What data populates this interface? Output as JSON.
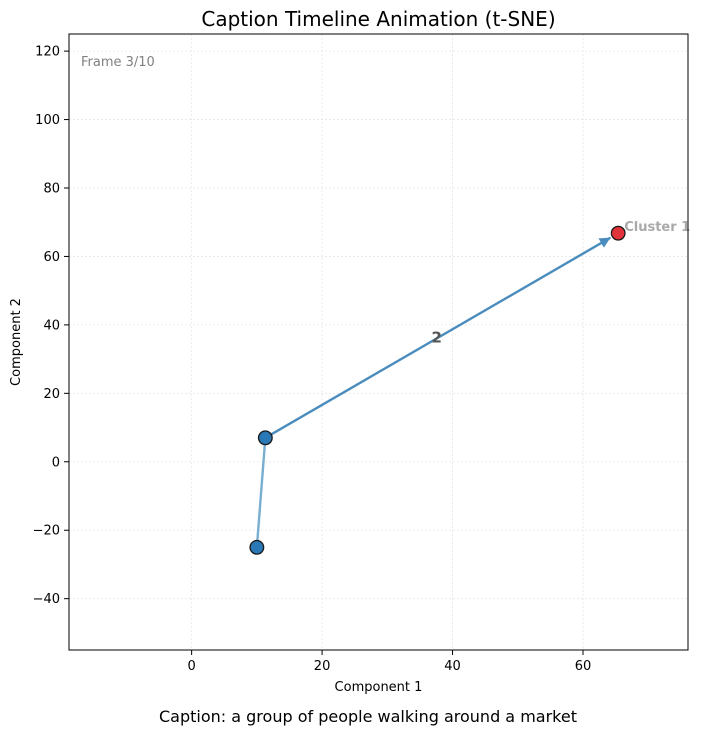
{
  "chart_data": {
    "type": "line",
    "title": "Caption Timeline Animation (t-SNE)",
    "xlabel": "Component 1",
    "ylabel": "Component 2",
    "xlim": [
      -18.8,
      76.1
    ],
    "ylim": [
      -55,
      125
    ],
    "xticks": [
      0,
      20,
      40,
      60
    ],
    "yticks": [
      -40,
      -20,
      0,
      20,
      40,
      60,
      80,
      100,
      120
    ],
    "grid": true,
    "frame_label": "Frame 3/10",
    "caption": "Caption: a group of people walking around a market",
    "points": [
      {
        "x": 10.0,
        "y": -25.0,
        "color": "#2a78b5"
      },
      {
        "x": 11.3,
        "y": 7.0,
        "color": "#2a78b5"
      },
      {
        "x": 65.4,
        "y": 66.8,
        "color": "#e0333a"
      }
    ],
    "segments": [
      {
        "from": 0,
        "to": 1,
        "color": "#78aed0"
      },
      {
        "from": 1,
        "to": 2,
        "color": "#4a8cbd",
        "arrow": true,
        "label": "2"
      }
    ],
    "annotations": [
      {
        "text": "Cluster 1",
        "x": 65.4,
        "y": 66.8,
        "color": "#aaaaaa"
      }
    ]
  }
}
